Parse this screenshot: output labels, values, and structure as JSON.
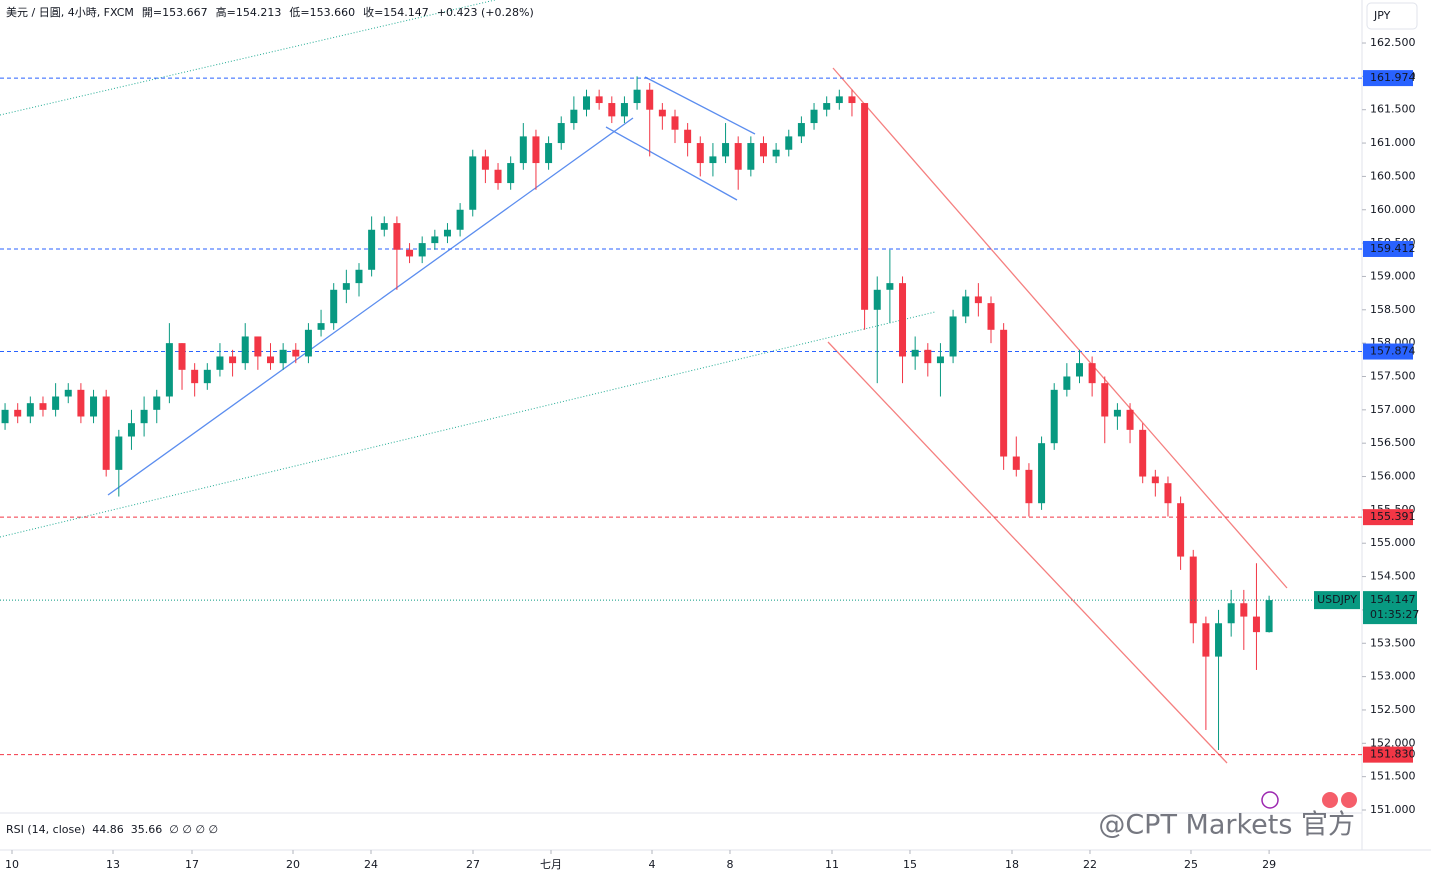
{
  "chart_data": {
    "type": "candlestick",
    "header": [
      "美元 / 日圓, 4小時, FXCM",
      "開=153.667",
      "高=154.213",
      "低=153.660",
      "收=154.147",
      "+0.423 (+0.28%)"
    ],
    "currency": "JPY",
    "symbol": "USDJPY",
    "countdown": "01:35:27",
    "indicator": [
      "RSI (14, close)",
      "44.86",
      "35.66",
      "∅ ∅ ∅ ∅"
    ],
    "watermark": "@CPT Markets 官方",
    "up_color": "#089981",
    "down_color": "#f23645",
    "grid": false,
    "open": [
      156.8,
      157.0,
      156.9,
      157.1,
      157.0,
      157.2,
      157.3,
      156.9,
      157.2,
      156.1,
      156.6,
      156.8,
      157.0,
      157.2,
      158.0,
      157.6,
      157.4,
      157.6,
      157.8,
      157.7,
      158.1,
      157.8,
      157.7,
      157.9,
      157.8,
      158.2,
      158.3,
      158.8,
      158.9,
      159.1,
      159.7,
      159.8,
      159.4,
      159.3,
      159.5,
      159.6,
      159.7,
      160.0,
      160.8,
      160.6,
      160.4,
      160.7,
      161.1,
      160.7,
      161.0,
      161.3,
      161.5,
      161.7,
      161.6,
      161.4,
      161.6,
      161.8,
      161.5,
      161.4,
      161.2,
      161.0,
      160.7,
      160.8,
      161.0,
      160.6,
      161.0,
      160.8,
      160.9,
      161.1,
      161.3,
      161.5,
      161.6,
      161.7,
      161.6,
      158.5,
      158.8,
      158.9,
      157.8,
      157.9,
      157.7,
      157.8,
      158.4,
      158.7,
      158.6,
      158.2,
      156.3,
      156.1,
      155.6,
      156.5,
      157.3,
      157.5,
      157.7,
      157.4,
      156.9,
      157.0,
      156.7,
      156.0,
      155.9,
      155.6,
      154.8,
      153.8,
      153.3,
      153.8,
      154.1,
      153.9,
      153.667
    ],
    "high": [
      157.1,
      157.1,
      157.2,
      157.2,
      157.4,
      157.4,
      157.4,
      157.3,
      157.3,
      156.7,
      157.0,
      157.2,
      157.3,
      158.3,
      158.0,
      157.7,
      157.7,
      158.0,
      157.9,
      158.3,
      158.1,
      158.0,
      158.0,
      158.0,
      158.3,
      158.5,
      158.9,
      159.1,
      159.2,
      159.9,
      159.9,
      159.9,
      159.5,
      159.6,
      159.7,
      159.8,
      160.1,
      160.9,
      160.9,
      160.7,
      160.8,
      161.3,
      161.2,
      161.1,
      161.4,
      161.7,
      161.8,
      161.8,
      161.7,
      161.7,
      162.0,
      161.9,
      161.6,
      161.5,
      161.3,
      161.1,
      161.0,
      161.3,
      161.1,
      161.1,
      161.1,
      161.0,
      161.2,
      161.4,
      161.6,
      161.7,
      161.8,
      161.8,
      161.6,
      159.0,
      159.4,
      159.0,
      158.1,
      158.0,
      158.0,
      158.5,
      158.8,
      158.9,
      158.7,
      158.3,
      156.6,
      156.2,
      156.6,
      157.4,
      157.7,
      157.9,
      157.8,
      157.5,
      157.1,
      157.1,
      156.8,
      156.1,
      156.0,
      155.7,
      154.9,
      153.9,
      154.0,
      154.3,
      154.3,
      154.7,
      154.213
    ],
    "low": [
      156.7,
      156.8,
      156.8,
      156.9,
      156.9,
      157.1,
      156.8,
      156.8,
      156.0,
      155.7,
      156.4,
      156.6,
      156.8,
      157.1,
      157.3,
      157.2,
      157.3,
      157.5,
      157.5,
      157.6,
      157.6,
      157.6,
      157.6,
      157.7,
      157.7,
      158.1,
      158.2,
      158.6,
      158.7,
      159.0,
      159.6,
      158.8,
      159.2,
      159.2,
      159.4,
      159.5,
      159.6,
      159.9,
      160.4,
      160.3,
      160.3,
      160.6,
      160.3,
      160.6,
      160.9,
      161.2,
      161.4,
      161.5,
      161.3,
      161.3,
      161.5,
      160.8,
      161.2,
      161.0,
      160.8,
      160.5,
      160.5,
      160.7,
      160.3,
      160.5,
      160.7,
      160.7,
      160.8,
      161.0,
      161.2,
      161.4,
      161.5,
      161.4,
      158.2,
      157.4,
      158.3,
      157.4,
      157.6,
      157.5,
      157.2,
      157.7,
      158.3,
      158.4,
      158.0,
      156.1,
      156.0,
      155.4,
      155.5,
      156.4,
      157.2,
      157.4,
      157.2,
      156.5,
      156.7,
      156.5,
      155.9,
      155.7,
      155.4,
      154.6,
      153.5,
      152.2,
      151.9,
      153.6,
      153.4,
      153.1,
      153.66
    ],
    "close": [
      157.0,
      156.9,
      157.1,
      157.0,
      157.2,
      157.3,
      156.9,
      157.2,
      156.1,
      156.6,
      156.8,
      157.0,
      157.2,
      158.0,
      157.6,
      157.4,
      157.6,
      157.8,
      157.7,
      158.1,
      157.8,
      157.7,
      157.9,
      157.8,
      158.2,
      158.3,
      158.8,
      158.9,
      159.1,
      159.7,
      159.8,
      159.4,
      159.3,
      159.5,
      159.6,
      159.7,
      160.0,
      160.8,
      160.6,
      160.4,
      160.7,
      161.1,
      160.7,
      161.0,
      161.3,
      161.5,
      161.7,
      161.6,
      161.4,
      161.6,
      161.8,
      161.5,
      161.4,
      161.2,
      161.0,
      160.7,
      160.8,
      161.0,
      160.6,
      161.0,
      160.8,
      160.9,
      161.1,
      161.3,
      161.5,
      161.6,
      161.7,
      161.6,
      158.5,
      158.8,
      158.9,
      157.8,
      157.9,
      157.7,
      157.8,
      158.4,
      158.7,
      158.6,
      158.2,
      156.3,
      156.1,
      155.6,
      156.5,
      157.3,
      157.5,
      157.7,
      157.4,
      156.9,
      157.0,
      156.7,
      156.0,
      155.9,
      155.6,
      154.8,
      153.8,
      153.3,
      153.8,
      154.1,
      153.9,
      153.667,
      154.147
    ],
    "levels": [
      {
        "value": 161.974,
        "label": "161.974",
        "color": "#2962ff"
      },
      {
        "value": 159.412,
        "label": "159.412",
        "color": "#2962ff"
      },
      {
        "value": 157.874,
        "label": "157.874",
        "color": "#2962ff"
      },
      {
        "value": 155.391,
        "label": "155.391",
        "color": "#f23645"
      },
      {
        "value": 151.83,
        "label": "151.830",
        "color": "#f23645"
      }
    ],
    "xlim": [
      -0.4,
      107.35
    ],
    "ylim": [
      150.97,
      163.145
    ],
    "xticks": [
      {
        "value": 0.55,
        "label": "10"
      },
      {
        "value": 8.54,
        "label": "13"
      },
      {
        "value": 14.79,
        "label": "17"
      },
      {
        "value": 22.78,
        "label": "20"
      },
      {
        "value": 28.95,
        "label": "24"
      },
      {
        "value": 37.02,
        "label": "27"
      },
      {
        "value": 43.19,
        "label": "七月"
      },
      {
        "value": 51.18,
        "label": "4"
      },
      {
        "value": 57.35,
        "label": "8"
      },
      {
        "value": 65.42,
        "label": "11"
      },
      {
        "value": 71.59,
        "label": "15"
      },
      {
        "value": 79.66,
        "label": "18"
      },
      {
        "value": 85.83,
        "label": "22"
      },
      {
        "value": 93.82,
        "label": "25"
      },
      {
        "value": 100.0,
        "label": "29"
      }
    ],
    "yticks": [
      {
        "value": 151.0,
        "label": "151.000"
      },
      {
        "value": 151.5,
        "label": "151.500"
      },
      {
        "value": 152.0,
        "label": "152.000"
      },
      {
        "value": 152.5,
        "label": "152.500"
      },
      {
        "value": 153.0,
        "label": "153.000"
      },
      {
        "value": 153.5,
        "label": "153.500"
      },
      {
        "value": 154.0,
        "label": "154.000"
      },
      {
        "value": 154.5,
        "label": "154.500"
      },
      {
        "value": 155.0,
        "label": "155.000"
      },
      {
        "value": 155.5,
        "label": "155.500"
      },
      {
        "value": 156.0,
        "label": "156.000"
      },
      {
        "value": 156.5,
        "label": "156.500"
      },
      {
        "value": 157.0,
        "label": "157.000"
      },
      {
        "value": 157.5,
        "label": "157.500"
      },
      {
        "value": 158.0,
        "label": "158.000"
      },
      {
        "value": 158.5,
        "label": "158.500"
      },
      {
        "value": 159.0,
        "label": "159.000"
      },
      {
        "value": 159.5,
        "label": "159.500"
      },
      {
        "value": 160.0,
        "label": "160.000"
      },
      {
        "value": 160.5,
        "label": "160.500"
      },
      {
        "value": 161.0,
        "label": "161.000"
      },
      {
        "value": 161.5,
        "label": "161.500"
      },
      {
        "value": 162.0,
        "label": "162.000"
      },
      {
        "value": 162.5,
        "label": "162.500"
      }
    ]
  }
}
